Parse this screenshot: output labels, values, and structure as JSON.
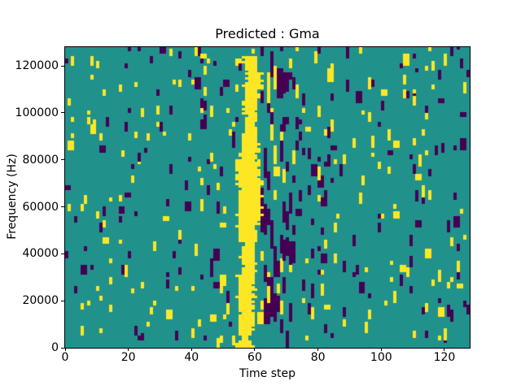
{
  "chart_data": {
    "type": "heatmap",
    "title": "Predicted : Gma",
    "xlabel": "Time step",
    "ylabel": "Frequency (Hz)",
    "xlim": [
      0,
      128
    ],
    "ylim": [
      0,
      128000
    ],
    "x_ticks": [
      0,
      20,
      40,
      60,
      80,
      100,
      120
    ],
    "y_ticks": [
      0,
      20000,
      40000,
      60000,
      80000,
      100000,
      120000
    ],
    "grid": {
      "cols": 128,
      "rows": 128
    },
    "colormap": "viridis-3-level",
    "colors": {
      "background_cell": "#21918c",
      "yellow_cell": "#fde725",
      "dark_cell": "#440154",
      "axis": "#000000",
      "figure_background": "#ffffff"
    },
    "pattern": {
      "seed": 7,
      "double_width_probability": 0.15,
      "scatter_regions": [
        {
          "cols": [
            0,
            37
          ],
          "yellow_start_prob": 0.009,
          "dark_start_prob": 0.008,
          "run_len": [
            2,
            4
          ]
        },
        {
          "cols": [
            38,
            54
          ],
          "yellow_start_prob": 0.014,
          "dark_start_prob": 0.012,
          "run_len": [
            2,
            5
          ]
        },
        {
          "cols": [
            55,
            60
          ],
          "yellow_start_prob": 0.004,
          "dark_start_prob": 0.004,
          "run_len": [
            2,
            3
          ]
        },
        {
          "cols": [
            61,
            61
          ],
          "yellow_start_prob": 0.055,
          "dark_start_prob": 0.015,
          "run_len": [
            2,
            5
          ]
        },
        {
          "cols": [
            62,
            67
          ],
          "yellow_start_prob": 0.008,
          "dark_start_prob": 0.045,
          "run_len": [
            4,
            13
          ]
        },
        {
          "cols": [
            68,
            72
          ],
          "yellow_start_prob": 0.01,
          "dark_start_prob": 0.032,
          "run_len": [
            3,
            9
          ]
        },
        {
          "cols": [
            73,
            84
          ],
          "yellow_start_prob": 0.012,
          "dark_start_prob": 0.018,
          "run_len": [
            2,
            6
          ]
        },
        {
          "cols": [
            85,
            127
          ],
          "yellow_start_prob": 0.012,
          "dark_start_prob": 0.013,
          "run_len": [
            2,
            5
          ]
        }
      ],
      "yellow_band": {
        "rows": [
          0,
          123
        ],
        "edge_jitter": 1,
        "profile": [
          {
            "rows": [
              0,
              8
            ],
            "cols": [
              55,
              58
            ]
          },
          {
            "rows": [
              9,
              30
            ],
            "cols": [
              55,
              59
            ]
          },
          {
            "rows": [
              31,
              44
            ],
            "cols": [
              56,
              59
            ]
          },
          {
            "rows": [
              45,
              55
            ],
            "cols": [
              55,
              60
            ]
          },
          {
            "rows": [
              56,
              75
            ],
            "cols": [
              55,
              61
            ]
          },
          {
            "rows": [
              76,
              90
            ],
            "cols": [
              56,
              60
            ]
          },
          {
            "rows": [
              91,
              105
            ],
            "cols": [
              57,
              60
            ]
          },
          {
            "rows": [
              106,
              116
            ],
            "cols": [
              57,
              61
            ]
          },
          {
            "rows": [
              117,
              123
            ],
            "cols": [
              57,
              60
            ]
          }
        ]
      }
    }
  }
}
